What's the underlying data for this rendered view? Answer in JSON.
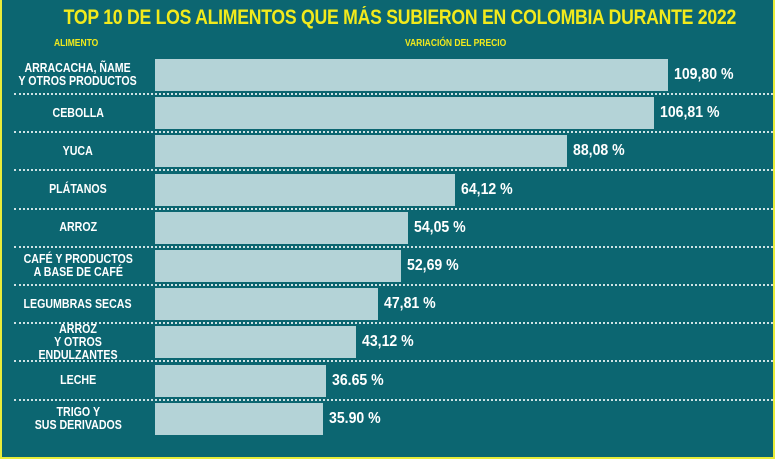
{
  "chart_data": {
    "type": "bar",
    "orientation": "horizontal",
    "title": "TOP 10 DE LOS ALIMENTOS QUE MÁS SUBIERON EN COLOMBIA DURANTE 2022",
    "category_header": "ALIMENTO",
    "value_header": "VARIACIÓN DEL PRECIO",
    "categories": [
      "ARRACACHA, ÑAME\nY OTROS PRODUCTOS",
      "CEBOLLA",
      "YUCA",
      "PLÁTANOS",
      "ARROZ",
      "CAFÉ Y PRODUCTOS\nA BASE DE CAFÉ",
      "LEGUMBRAS SECAS",
      "ARROZ\nY OTROS ENDULZANTES",
      "LECHE",
      "TRIGO Y\nSUS  DERIVADOS"
    ],
    "values": [
      109.8,
      106.81,
      88.08,
      64.12,
      54.05,
      52.69,
      47.81,
      43.12,
      36.65,
      35.9
    ],
    "labels": [
      "109,80 %",
      "106,81 %",
      "88,08 %",
      "64,12 %",
      "54,05 %",
      "52,69 %",
      "47,81 %",
      "43,12 %",
      "36.65 %",
      "35.90 %"
    ],
    "colors": {
      "background": "#0c6671",
      "bar": "#b4d3d7",
      "title": "#f2ea1c",
      "border": "#e8ec3a"
    }
  }
}
